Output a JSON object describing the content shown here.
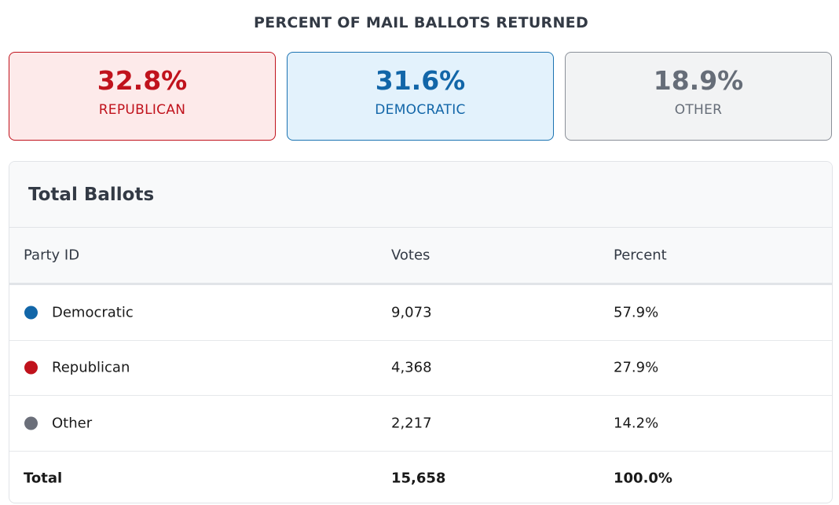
{
  "header": {
    "title": "PERCENT OF MAIL BALLOTS RETURNED"
  },
  "cards": [
    {
      "value": "32.8%",
      "label": "REPUBLICAN"
    },
    {
      "value": "31.6%",
      "label": "DEMOCRATIC"
    },
    {
      "value": "18.9%",
      "label": "OTHER"
    }
  ],
  "table": {
    "title": "Total Ballots",
    "columns": [
      "Party ID",
      "Votes",
      "Percent"
    ],
    "rows": [
      [
        "Democratic",
        "9,073",
        "57.9%"
      ],
      [
        "Republican",
        "4,368",
        "27.9%"
      ],
      [
        "Other",
        "2,217",
        "14.2%"
      ],
      [
        "Total",
        "15,658",
        "100.0%"
      ]
    ],
    "row_colors": [
      "#1266a8",
      "#c0121c",
      "#6b6f7a",
      null
    ]
  }
}
